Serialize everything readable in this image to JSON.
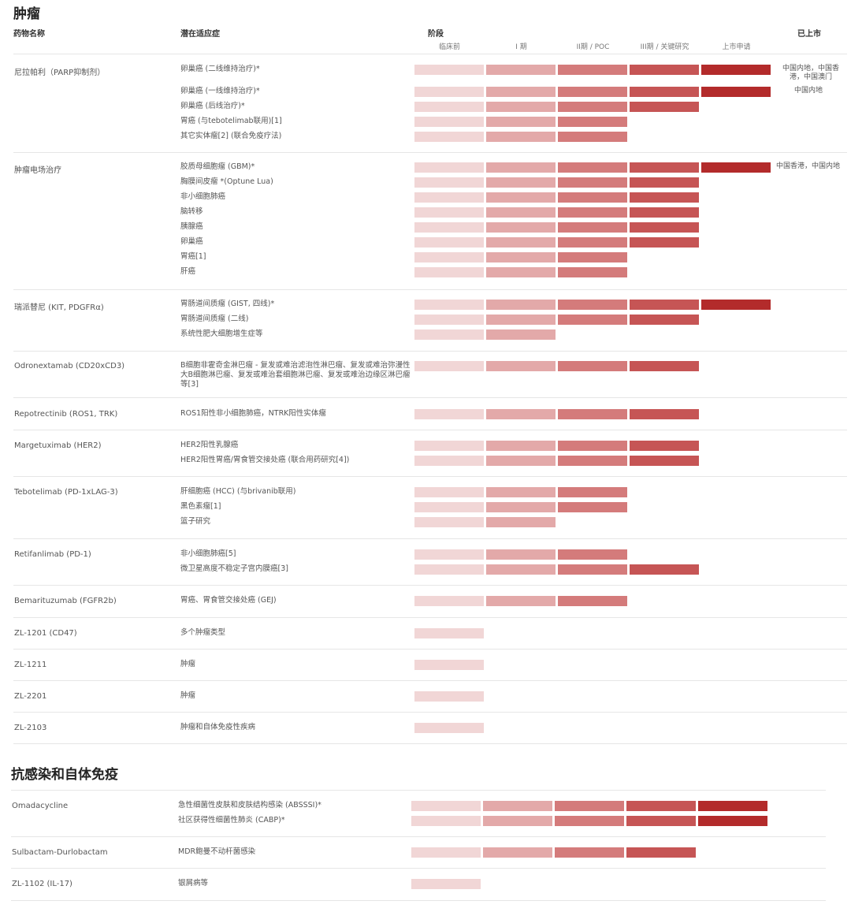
{
  "colors": {
    "stage0": "#f1d6d6",
    "stage1": "#e3a9a9",
    "stage2": "#d47b7b",
    "stage3": "#c65555",
    "stage4": "#b32b2b"
  },
  "sections": [
    {
      "title": "肿瘤",
      "header": {
        "drug": "药物名称",
        "indication": "潜在适应症",
        "phase": "阶段",
        "marketed": "已上市",
        "stages": [
          "临床前",
          "I 期",
          "II期 / POC",
          "III期 / 关键研究",
          "上市申请"
        ]
      },
      "drugs": [
        {
          "name": "尼拉帕利（PARP抑制剂）",
          "rows": [
            {
              "ind": "卵巢癌 (二线维持治疗)*",
              "stages": 5,
              "mkt": "中国内地，中国香港，中国澳门"
            },
            {
              "ind": "卵巢癌 (一线维持治疗)*",
              "stages": 5,
              "mkt": "中国内地"
            },
            {
              "ind": "卵巢癌 (后线治疗)*",
              "stages": 4
            },
            {
              "ind": "胃癌 (与tebotelimab联用)[1]",
              "stages": 3
            },
            {
              "ind": "其它实体瘤[2] (联合免疫疗法)",
              "stages": 3
            }
          ]
        },
        {
          "name": "肿瘤电场治疗",
          "rows": [
            {
              "ind": "胶质母细胞瘤 (GBM)*",
              "stages": 5,
              "mkt": "中国香港，中国内地"
            },
            {
              "ind": "胸膜间皮瘤 *(Optune Lua)",
              "stages": 4
            },
            {
              "ind": "非小细胞肺癌",
              "stages": 4
            },
            {
              "ind": "脑转移",
              "stages": 4
            },
            {
              "ind": "胰腺癌",
              "stages": 4
            },
            {
              "ind": "卵巢癌",
              "stages": 4
            },
            {
              "ind": "胃癌[1]",
              "stages": 3
            },
            {
              "ind": "肝癌",
              "stages": 3
            }
          ]
        },
        {
          "name": "瑞派替尼 (KIT, PDGFRα)",
          "rows": [
            {
              "ind": "胃肠道间质瘤 (GIST, 四线)*",
              "stages": 5
            },
            {
              "ind": "胃肠道间质瘤 (二线)",
              "stages": 4
            },
            {
              "ind": "系统性肥大细胞增生症等",
              "stages": 2
            }
          ]
        },
        {
          "name": "Odronextamab (CD20xCD3)",
          "rows": [
            {
              "ind": "B细胞非霍奇金淋巴瘤 - 复发或难治滤泡性淋巴瘤、复发或难治弥漫性大B细胞淋巴瘤、复发或难治套细胞淋巴瘤、复发或难治边缘区淋巴瘤等[3]",
              "stages": 4
            }
          ]
        },
        {
          "name": "Repotrectinib (ROS1, TRK)",
          "rows": [
            {
              "ind": "ROS1阳性非小细胞肺癌，NTRK阳性实体瘤",
              "stages": 4
            }
          ]
        },
        {
          "name": "Margetuximab (HER2)",
          "rows": [
            {
              "ind": "HER2阳性乳腺癌",
              "stages": 4
            },
            {
              "ind": "HER2阳性胃癌/胃食管交接处癌 (联合用药研究[4])",
              "stages": 4
            }
          ]
        },
        {
          "name": "Tebotelimab (PD-1xLAG-3)",
          "rows": [
            {
              "ind": "肝细胞癌 (HCC) (与brivanib联用)",
              "stages": 3
            },
            {
              "ind": "黑色素瘤[1]",
              "stages": 3
            },
            {
              "ind": "篮子研究",
              "stages": 2
            }
          ]
        },
        {
          "name": "Retifanlimab (PD-1)",
          "rows": [
            {
              "ind": "非小细胞肺癌[5]",
              "stages": 3
            },
            {
              "ind": "微卫星高度不稳定子宫内膜癌[3]",
              "stages": 4
            }
          ]
        },
        {
          "name": "Bemarituzumab (FGFR2b)",
          "rows": [
            {
              "ind": "胃癌、胃食管交接处癌 (GEJ)",
              "stages": 3
            }
          ]
        },
        {
          "name": "ZL-1201 (CD47)",
          "rows": [
            {
              "ind": "多个肿瘤类型",
              "stages": 1
            }
          ]
        },
        {
          "name": "ZL-1211",
          "rows": [
            {
              "ind": "肿瘤",
              "stages": 1
            }
          ]
        },
        {
          "name": "ZL-2201",
          "rows": [
            {
              "ind": "肿瘤",
              "stages": 1
            }
          ]
        },
        {
          "name": "ZL-2103",
          "rows": [
            {
              "ind": "肿瘤和自体免疫性疾病",
              "stages": 1
            }
          ]
        }
      ]
    },
    {
      "title": "抗感染和自体免疫",
      "drugs": [
        {
          "name": "Omadacycline",
          "rows": [
            {
              "ind": "急性细菌性皮肤和皮肤结构感染 (ABSSSI)*",
              "stages": 5
            },
            {
              "ind": "社区获得性细菌性肺炎 (CABP)*",
              "stages": 5
            }
          ]
        },
        {
          "name": "Sulbactam-Durlobactam",
          "rows": [
            {
              "ind": "MDR鲍曼不动杆菌感染",
              "stages": 4
            }
          ]
        },
        {
          "name": "ZL-1102 (IL-17)",
          "rows": [
            {
              "ind": "银屑病等",
              "stages": 1
            }
          ]
        }
      ]
    }
  ]
}
